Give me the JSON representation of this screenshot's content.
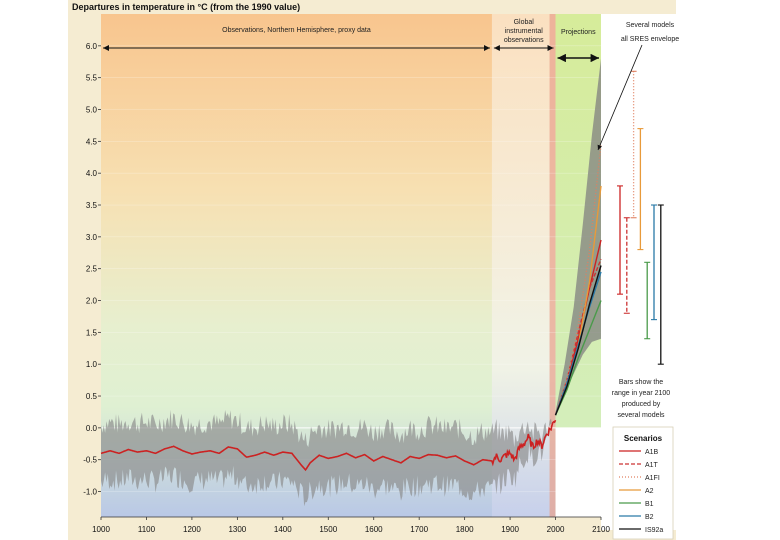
{
  "chart_data": {
    "type": "line",
    "title": "Departures in temperature in °C (from the 1990 value)",
    "xlim": [
      1000,
      2100
    ],
    "ylim": [
      -1.4,
      6.5
    ],
    "x_ticks": [
      "1000",
      "1100",
      "1200",
      "1300",
      "1400",
      "1500",
      "1600",
      "1700",
      "1800",
      "1900",
      "2000",
      "2100"
    ],
    "y_ticks": [
      "6.0",
      "5.5",
      "5.0",
      "4.5",
      "4.0",
      "3.5",
      "3.0",
      "2.5",
      "2.0",
      "1.5",
      "1.0",
      "0.5",
      "0.0",
      "-0.5",
      "-1.0"
    ],
    "y_tick_values": [
      6.0,
      5.5,
      5.0,
      4.5,
      4.0,
      3.5,
      3.0,
      2.5,
      2.0,
      1.5,
      1.0,
      0.5,
      0.0,
      -0.5,
      -1.0
    ],
    "periods": [
      {
        "label": "Observations, Northern Hemisphere, proxy data",
        "from": 1000,
        "to": 1860
      },
      {
        "label_lines": [
          "Global",
          "instrumental",
          "observations"
        ],
        "from": 1860,
        "to": 2000
      },
      {
        "label": "Projections",
        "from": 2000,
        "to": 2100
      }
    ],
    "annotations": {
      "envelope_lines": [
        "Several models",
        "all SRES envelope"
      ],
      "bars_note_lines": [
        "Bars show the",
        "range in year 2100",
        "produced by",
        "several models"
      ]
    },
    "colors": {
      "observed": "#cc2222",
      "uncertainty": "#888888",
      "A1B": "#cc2222",
      "A1T": "#cc3333",
      "A1FI": "#e08060",
      "A2": "#e89a3a",
      "B1": "#4a9a4a",
      "B2": "#2a7aa8",
      "IS92a": "#111111"
    },
    "observed_series": {
      "name": "Northern Hemisphere reconstruction (smoothed)",
      "x": [
        1000,
        1020,
        1040,
        1060,
        1080,
        1100,
        1120,
        1140,
        1160,
        1180,
        1200,
        1220,
        1240,
        1260,
        1280,
        1300,
        1320,
        1340,
        1360,
        1380,
        1400,
        1420,
        1440,
        1450,
        1460,
        1480,
        1500,
        1520,
        1540,
        1560,
        1580,
        1600,
        1620,
        1640,
        1660,
        1680,
        1700,
        1720,
        1740,
        1760,
        1780,
        1800,
        1820,
        1840,
        1860,
        1870,
        1880,
        1890,
        1900,
        1910,
        1920,
        1930,
        1940,
        1950,
        1960,
        1970,
        1980,
        1990,
        2000
      ],
      "y": [
        -0.4,
        -0.36,
        -0.4,
        -0.34,
        -0.38,
        -0.36,
        -0.4,
        -0.33,
        -0.29,
        -0.36,
        -0.41,
        -0.38,
        -0.36,
        -0.4,
        -0.3,
        -0.33,
        -0.46,
        -0.43,
        -0.38,
        -0.43,
        -0.38,
        -0.4,
        -0.58,
        -0.66,
        -0.55,
        -0.43,
        -0.48,
        -0.45,
        -0.4,
        -0.47,
        -0.42,
        -0.52,
        -0.45,
        -0.5,
        -0.55,
        -0.45,
        -0.48,
        -0.42,
        -0.43,
        -0.47,
        -0.44,
        -0.52,
        -0.58,
        -0.5,
        -0.52,
        -0.45,
        -0.5,
        -0.43,
        -0.4,
        -0.5,
        -0.32,
        -0.25,
        -0.15,
        -0.3,
        -0.2,
        -0.28,
        -0.1,
        0.0,
        0.15
      ]
    },
    "uncertainty_band": {
      "name": "proxy uncertainty",
      "approx_half_width": 0.45
    },
    "projection_envelope": {
      "x": [
        2000,
        2020,
        2040,
        2060,
        2080,
        2100
      ],
      "lower": [
        0.2,
        0.55,
        0.85,
        1.15,
        1.35,
        1.4
      ],
      "upper": [
        0.25,
        1.0,
        1.9,
        3.2,
        4.6,
        5.8
      ]
    },
    "series": [
      {
        "name": "A1B",
        "x": [
          2000,
          2025,
          2050,
          2075,
          2100
        ],
        "y": [
          0.2,
          0.7,
          1.4,
          2.2,
          2.95
        ]
      },
      {
        "name": "A1T",
        "x": [
          2000,
          2025,
          2050,
          2075,
          2100
        ],
        "y": [
          0.2,
          0.75,
          1.5,
          2.2,
          2.65
        ]
      },
      {
        "name": "A1FI",
        "x": [
          2000,
          2025,
          2050,
          2075,
          2100
        ],
        "y": [
          0.2,
          0.75,
          1.6,
          2.8,
          4.45
        ]
      },
      {
        "name": "A2",
        "x": [
          2000,
          2025,
          2050,
          2075,
          2100
        ],
        "y": [
          0.2,
          0.65,
          1.3,
          2.3,
          3.8
        ]
      },
      {
        "name": "B1",
        "x": [
          2000,
          2025,
          2050,
          2075,
          2100
        ],
        "y": [
          0.2,
          0.6,
          1.1,
          1.55,
          2.0
        ]
      },
      {
        "name": "B2",
        "x": [
          2000,
          2025,
          2050,
          2075,
          2100
        ],
        "y": [
          0.2,
          0.7,
          1.3,
          1.9,
          2.45
        ]
      },
      {
        "name": "IS92a",
        "x": [
          2000,
          2025,
          2050,
          2075,
          2100
        ],
        "y": [
          0.2,
          0.65,
          1.25,
          1.95,
          2.55
        ]
      }
    ],
    "range_bars_2100": [
      {
        "name": "A1B",
        "low": 2.1,
        "high": 3.8
      },
      {
        "name": "A1T",
        "low": 1.8,
        "high": 3.3
      },
      {
        "name": "A1FI",
        "low": 3.3,
        "high": 5.6
      },
      {
        "name": "A2",
        "low": 2.8,
        "high": 4.7
      },
      {
        "name": "B1",
        "low": 1.4,
        "high": 2.6
      },
      {
        "name": "B2",
        "low": 1.7,
        "high": 3.5
      },
      {
        "name": "IS92a",
        "low": 1.0,
        "high": 3.5
      }
    ],
    "legend": {
      "title": "Scenarios",
      "items": [
        {
          "name": "A1B",
          "style": "solid"
        },
        {
          "name": "A1T",
          "style": "dashed"
        },
        {
          "name": "A1FI",
          "style": "dotted"
        },
        {
          "name": "A2",
          "style": "solid"
        },
        {
          "name": "B1",
          "style": "solid"
        },
        {
          "name": "B2",
          "style": "solid"
        },
        {
          "name": "IS92a",
          "style": "solid"
        }
      ]
    }
  }
}
